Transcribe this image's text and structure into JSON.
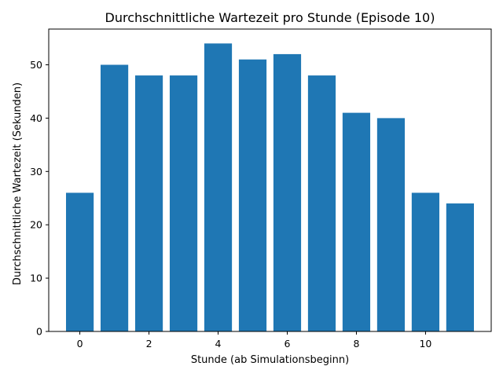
{
  "chart_data": {
    "type": "bar",
    "title": "Durchschnittliche Wartezeit pro Stunde (Episode 10)",
    "xlabel": "Stunde (ab Simulationsbeginn)",
    "ylabel": "Durchschnittliche Wartezeit (Sekunden)",
    "x": [
      0,
      1,
      2,
      3,
      4,
      5,
      6,
      7,
      8,
      9,
      10,
      11
    ],
    "values": [
      26,
      50,
      48,
      48,
      54,
      51,
      52,
      48,
      41,
      40,
      26,
      24
    ],
    "xlim": [
      -0.9,
      11.9
    ],
    "ylim": [
      0,
      56.7
    ],
    "xticks": [
      0,
      2,
      4,
      6,
      8,
      10
    ],
    "yticks": [
      0,
      10,
      20,
      30,
      40,
      50
    ],
    "bar_color": "#1f77b4",
    "grid": false,
    "legend": false
  }
}
